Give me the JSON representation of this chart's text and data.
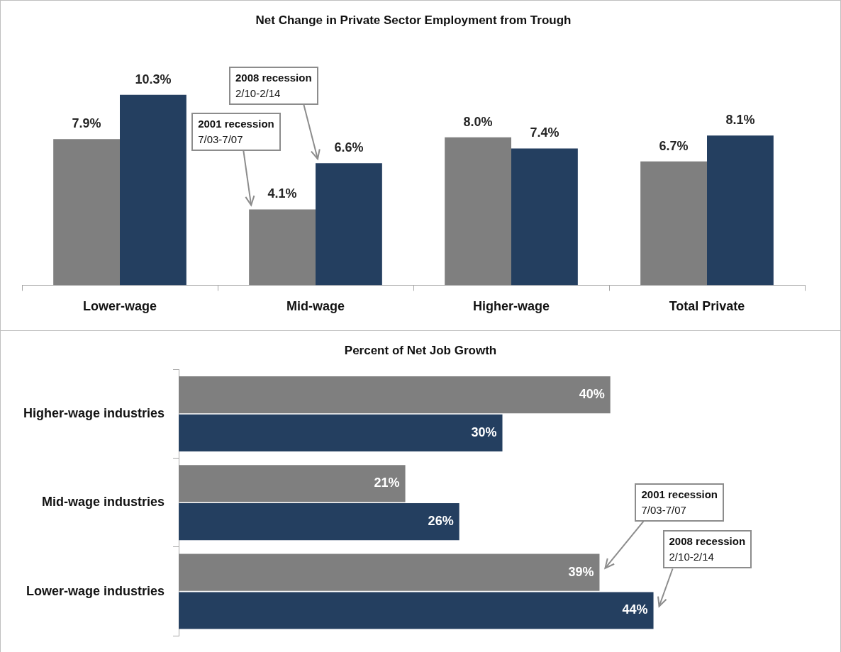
{
  "chart_data": [
    {
      "type": "bar",
      "title": "Net Change in Private Sector Employment from Trough",
      "categories": [
        "Lower-wage",
        "Mid-wage",
        "Higher-wage",
        "Total Private"
      ],
      "series": [
        {
          "color": "#7f7f7f",
          "values": [
            7.9,
            4.1,
            8.0,
            6.7
          ],
          "value_labels": [
            "7.9%",
            "4.1%",
            "8.0%",
            "6.7%"
          ]
        },
        {
          "color": "#243f60",
          "values": [
            10.3,
            6.6,
            7.4,
            8.1
          ],
          "value_labels": [
            "10.3%",
            "6.6%",
            "7.4%",
            "8.1%"
          ]
        }
      ],
      "annotations": [
        "2001 recession",
        "7/03-7/07",
        "2008 recession",
        "2/10-2/14"
      ],
      "tick_labels": "x"
    },
    {
      "type": "bar",
      "orientation": "horizontal",
      "title": "Percent of Net Job Growth",
      "categories": [
        "Higher-wage industries",
        "Mid-wage industries",
        "Lower-wage industries"
      ],
      "series": [
        {
          "color": "#7f7f7f",
          "values": [
            40,
            21,
            39
          ],
          "value_labels": [
            "40%",
            "21%",
            "39%"
          ]
        },
        {
          "color": "#243f60",
          "values": [
            30,
            26,
            44
          ],
          "value_labels": [
            "30%",
            "26%",
            "44%"
          ]
        }
      ],
      "annotations": [
        "2001 recession",
        "7/03-7/07",
        "2008 recession",
        "2/10-2/14"
      ],
      "tick_labels": "y"
    }
  ]
}
